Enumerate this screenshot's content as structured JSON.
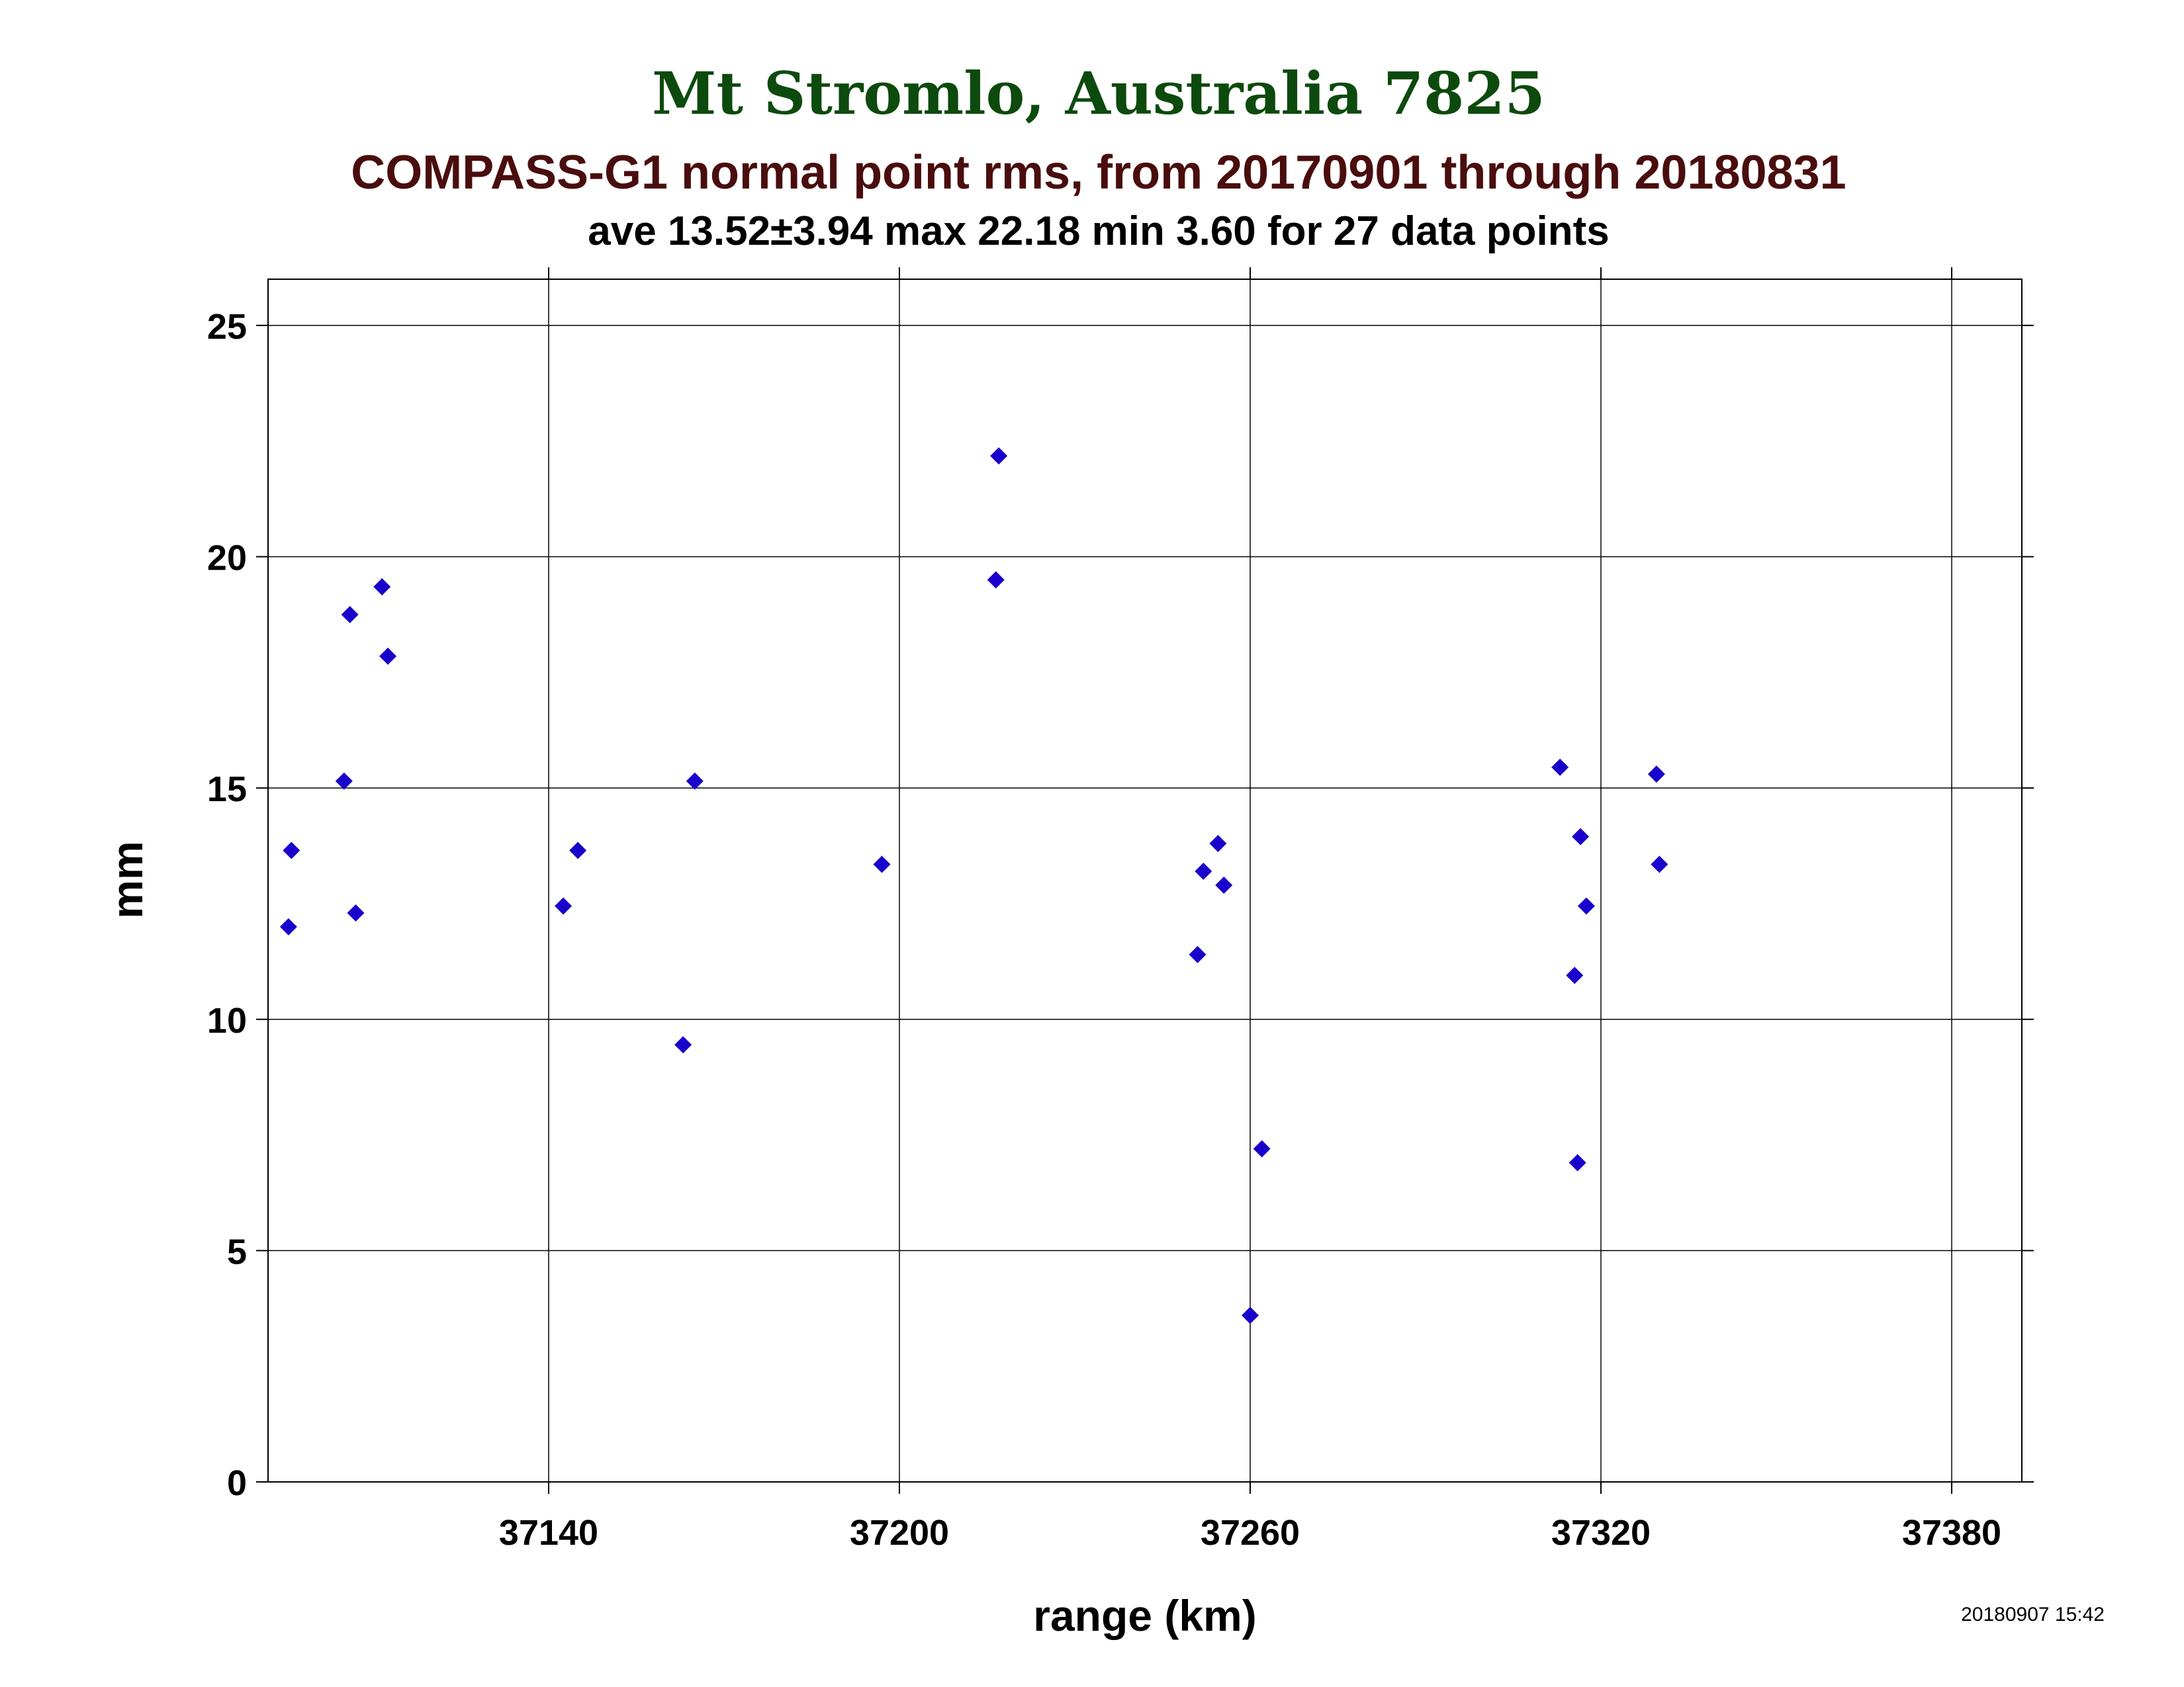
{
  "colors": {
    "title": "#0d4a0d",
    "subtitle": "#4a0d0d",
    "text": "#000000",
    "marker": "#1a00cc",
    "grid": "#000000"
  },
  "chart_data": {
    "type": "scatter",
    "title": "Mt Stromlo, Australia 7825",
    "subtitle": "COMPASS-G1 normal point rms, from 20170901 through 20180831",
    "stats_line": "ave 13.52±3.94 max 22.18 min 3.60 for 27 data points",
    "xlabel": "range (km)",
    "ylabel": "mm",
    "timestamp": "20180907 15:42",
    "xlim": [
      37092,
      37392
    ],
    "ylim": [
      0,
      26
    ],
    "xticks": [
      37140,
      37200,
      37260,
      37320,
      37380
    ],
    "yticks": [
      0,
      5,
      10,
      15,
      20,
      25
    ],
    "grid": true,
    "marker": "diamond",
    "points": [
      {
        "x": 37095.5,
        "y": 12.0
      },
      {
        "x": 37096.0,
        "y": 13.65
      },
      {
        "x": 37105.0,
        "y": 15.15
      },
      {
        "x": 37106.0,
        "y": 18.75
      },
      {
        "x": 37107.0,
        "y": 12.3
      },
      {
        "x": 37111.5,
        "y": 19.35
      },
      {
        "x": 37112.5,
        "y": 17.85
      },
      {
        "x": 37142.5,
        "y": 12.45
      },
      {
        "x": 37145.0,
        "y": 13.65
      },
      {
        "x": 37163.0,
        "y": 9.45
      },
      {
        "x": 37165.0,
        "y": 15.15
      },
      {
        "x": 37197.0,
        "y": 13.35
      },
      {
        "x": 37216.5,
        "y": 19.5
      },
      {
        "x": 37217.0,
        "y": 22.18
      },
      {
        "x": 37251.0,
        "y": 11.4
      },
      {
        "x": 37252.0,
        "y": 13.2
      },
      {
        "x": 37254.5,
        "y": 13.8
      },
      {
        "x": 37255.5,
        "y": 12.9
      },
      {
        "x": 37260.0,
        "y": 3.6
      },
      {
        "x": 37262.0,
        "y": 7.2
      },
      {
        "x": 37313.0,
        "y": 15.45
      },
      {
        "x": 37315.5,
        "y": 10.95
      },
      {
        "x": 37316.0,
        "y": 6.9
      },
      {
        "x": 37316.5,
        "y": 13.95
      },
      {
        "x": 37317.5,
        "y": 12.45
      },
      {
        "x": 37329.5,
        "y": 15.3
      },
      {
        "x": 37330.0,
        "y": 13.35
      }
    ]
  }
}
